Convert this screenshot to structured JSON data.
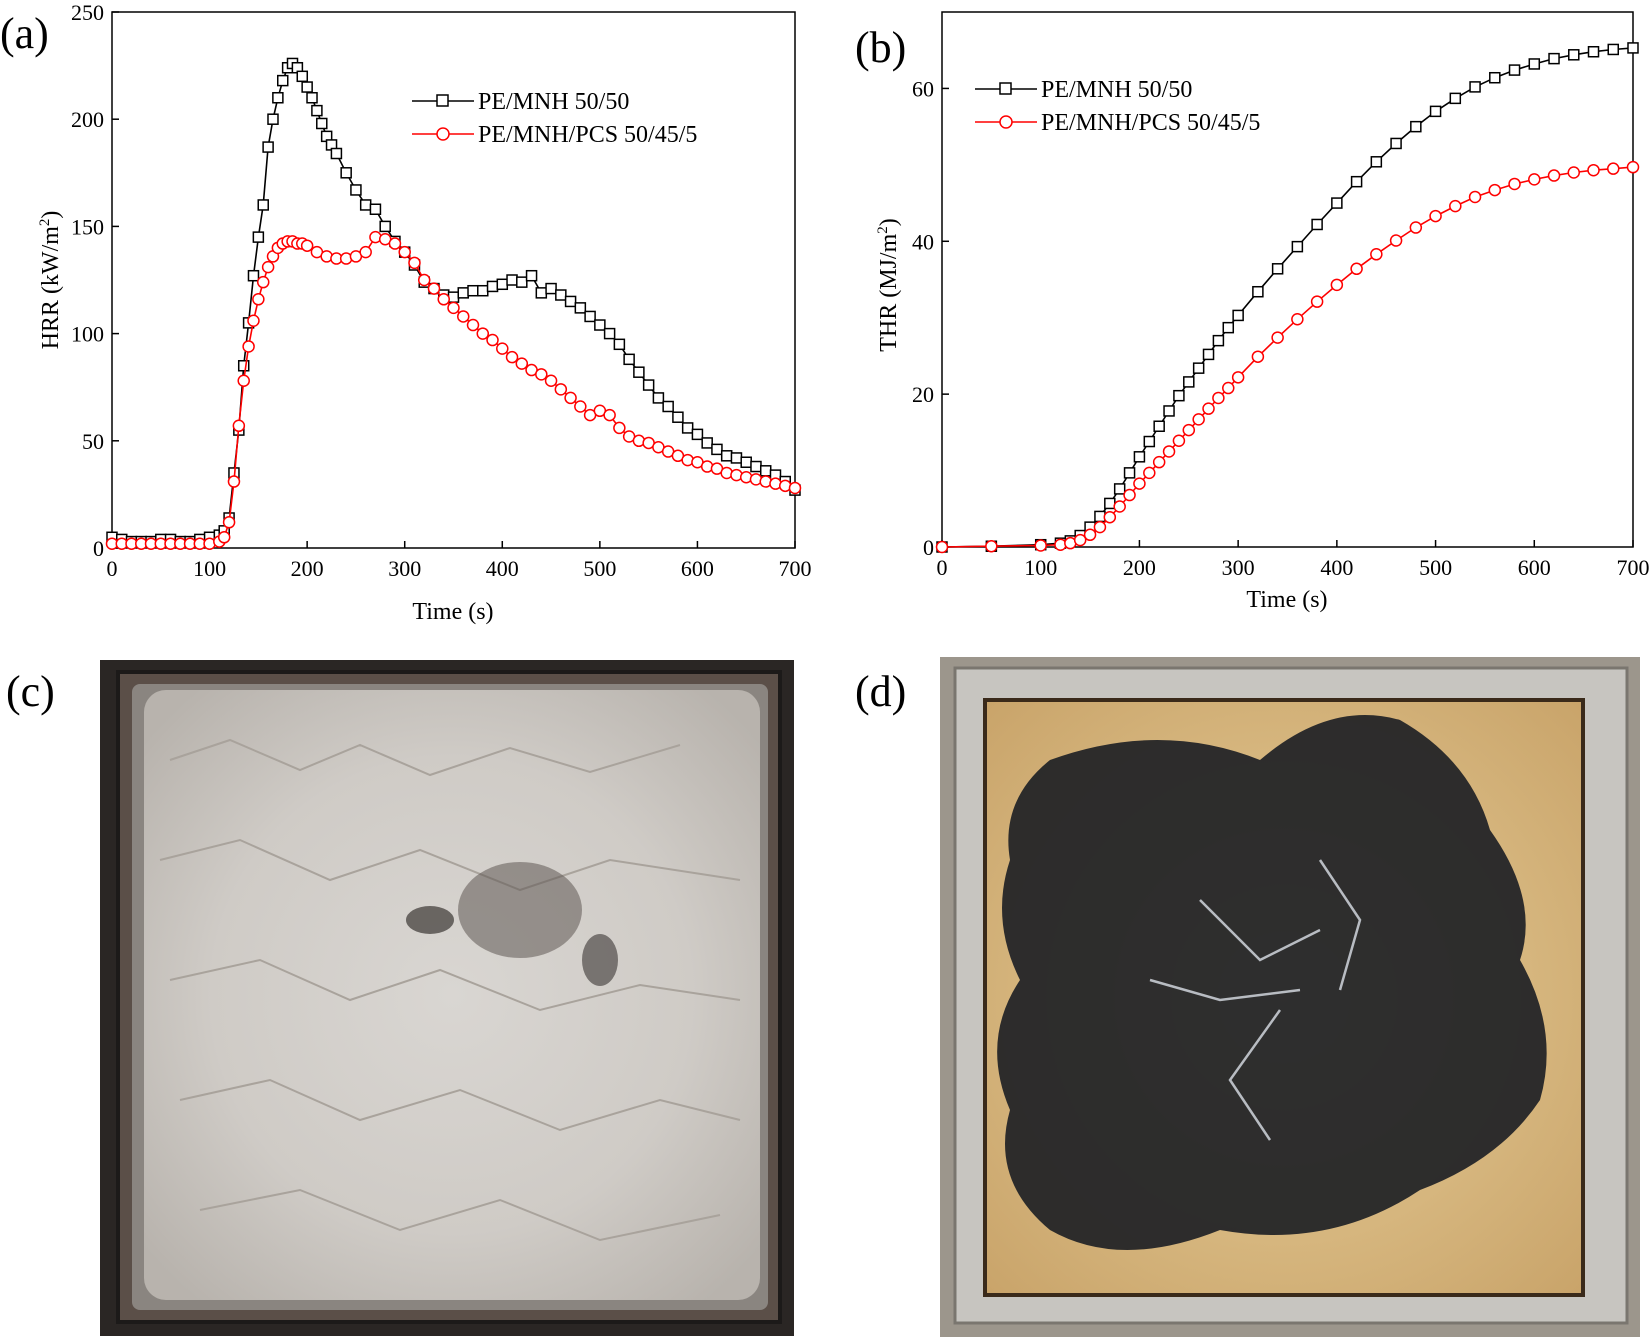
{
  "panels": {
    "a_label": "(a)",
    "b_label": "(b)",
    "c_label": "(c)",
    "d_label": "(d)"
  },
  "chart_data": [
    {
      "panel": "(a)",
      "type": "line",
      "title": "",
      "xlabel": "Time (s)",
      "ylabel": "HRR (kW/m²)",
      "ylabel_main": "HRR (kW/m",
      "ylabel_sup": "2",
      "ylabel_end": ")",
      "xlim": [
        0,
        700
      ],
      "ylim": [
        0,
        250
      ],
      "xticks": [
        0,
        100,
        200,
        300,
        400,
        500,
        600,
        700
      ],
      "yticks": [
        0,
        50,
        100,
        150,
        200,
        250
      ],
      "grid": false,
      "legend_position": "upper-right",
      "series": [
        {
          "name": "PE/MNH 50/50",
          "color": "#000000",
          "marker": "square",
          "x": [
            0,
            10,
            20,
            30,
            40,
            50,
            60,
            70,
            80,
            90,
            100,
            110,
            115,
            120,
            125,
            130,
            135,
            140,
            145,
            150,
            155,
            160,
            165,
            170,
            175,
            180,
            185,
            190,
            195,
            200,
            205,
            210,
            215,
            220,
            225,
            230,
            240,
            250,
            260,
            270,
            280,
            290,
            300,
            310,
            320,
            330,
            340,
            350,
            360,
            370,
            380,
            390,
            400,
            410,
            420,
            430,
            440,
            450,
            460,
            470,
            480,
            490,
            500,
            510,
            520,
            530,
            540,
            550,
            560,
            570,
            580,
            590,
            600,
            610,
            620,
            630,
            640,
            650,
            660,
            670,
            680,
            690,
            700
          ],
          "y": [
            5,
            4,
            3,
            3,
            3,
            4,
            4,
            3,
            3,
            4,
            5,
            6,
            8,
            14,
            35,
            55,
            85,
            105,
            127,
            145,
            160,
            187,
            200,
            210,
            218,
            224,
            226,
            224,
            220,
            215,
            210,
            204,
            198,
            192,
            188,
            184,
            175,
            167,
            160,
            158,
            150,
            143,
            138,
            132,
            124,
            121,
            118,
            117,
            119,
            120,
            120,
            122,
            123,
            125,
            124,
            127,
            119,
            121,
            118,
            115,
            112,
            108,
            104,
            100,
            95,
            88,
            82,
            76,
            70,
            66,
            61,
            56,
            53,
            49,
            46,
            43,
            42,
            40,
            38,
            36,
            34,
            31,
            27
          ]
        },
        {
          "name": "PE/MNH/PCS 50/45/5",
          "color": "#ff0000",
          "marker": "circle",
          "x": [
            0,
            10,
            20,
            30,
            40,
            50,
            60,
            70,
            80,
            90,
            100,
            110,
            115,
            120,
            125,
            130,
            135,
            140,
            145,
            150,
            155,
            160,
            165,
            170,
            175,
            180,
            185,
            190,
            195,
            200,
            210,
            220,
            230,
            240,
            250,
            260,
            270,
            280,
            290,
            300,
            310,
            320,
            330,
            340,
            350,
            360,
            370,
            380,
            390,
            400,
            410,
            420,
            430,
            440,
            450,
            460,
            470,
            480,
            490,
            500,
            510,
            520,
            530,
            540,
            550,
            560,
            570,
            580,
            590,
            600,
            610,
            620,
            630,
            640,
            650,
            660,
            670,
            680,
            690,
            700
          ],
          "y": [
            2,
            2,
            2,
            2,
            2,
            2,
            2,
            2,
            2,
            2,
            2,
            3,
            5,
            12,
            31,
            57,
            78,
            94,
            106,
            116,
            124,
            131,
            136,
            140,
            142,
            143,
            143,
            142,
            142,
            141,
            138,
            136,
            135,
            135,
            136,
            138,
            145,
            144,
            142,
            138,
            133,
            125,
            121,
            116,
            112,
            108,
            104,
            100,
            97,
            93,
            89,
            86,
            83,
            81,
            78,
            74,
            70,
            66,
            62,
            64,
            62,
            56,
            52,
            50,
            49,
            47,
            45,
            43,
            41,
            40,
            38,
            37,
            35,
            34,
            33,
            32,
            31,
            30,
            29,
            28
          ]
        }
      ]
    },
    {
      "panel": "(b)",
      "type": "line",
      "title": "",
      "xlabel": "Time (s)",
      "ylabel": "THR (MJ/m²)",
      "ylabel_main": "THR (MJ/m",
      "ylabel_sup": "2",
      "ylabel_end": ")",
      "xlim": [
        0,
        700
      ],
      "ylim": [
        0,
        70
      ],
      "xticks": [
        0,
        100,
        200,
        300,
        400,
        500,
        600,
        700
      ],
      "yticks": [
        0,
        20,
        40,
        60
      ],
      "grid": false,
      "legend_position": "upper-left",
      "series": [
        {
          "name": "PE/MNH 50/50",
          "color": "#000000",
          "marker": "square",
          "x": [
            0,
            50,
            100,
            120,
            130,
            140,
            150,
            160,
            170,
            180,
            190,
            200,
            210,
            220,
            230,
            240,
            250,
            260,
            270,
            280,
            290,
            300,
            320,
            340,
            360,
            380,
            400,
            420,
            440,
            460,
            480,
            500,
            520,
            540,
            560,
            580,
            600,
            620,
            640,
            660,
            680,
            700
          ],
          "y": [
            0,
            0.1,
            0.3,
            0.5,
            0.8,
            1.5,
            2.6,
            4.0,
            5.7,
            7.6,
            9.7,
            11.8,
            13.8,
            15.8,
            17.8,
            19.8,
            21.6,
            23.4,
            25.2,
            27.0,
            28.7,
            30.3,
            33.4,
            36.4,
            39.3,
            42.2,
            45.0,
            47.8,
            50.4,
            52.8,
            55.0,
            57.0,
            58.7,
            60.2,
            61.4,
            62.4,
            63.2,
            63.9,
            64.4,
            64.8,
            65.1,
            65.3
          ]
        },
        {
          "name": "PE/MNH/PCS 50/45/5",
          "color": "#ff0000",
          "marker": "circle",
          "x": [
            0,
            50,
            100,
            120,
            130,
            140,
            150,
            160,
            170,
            180,
            190,
            200,
            210,
            220,
            230,
            240,
            250,
            260,
            270,
            280,
            290,
            300,
            320,
            340,
            360,
            380,
            400,
            420,
            440,
            460,
            480,
            500,
            520,
            540,
            560,
            580,
            600,
            620,
            640,
            660,
            680,
            700
          ],
          "y": [
            0,
            0.1,
            0.2,
            0.3,
            0.5,
            0.9,
            1.6,
            2.6,
            3.9,
            5.3,
            6.8,
            8.3,
            9.7,
            11.1,
            12.5,
            13.9,
            15.3,
            16.7,
            18.1,
            19.5,
            20.8,
            22.2,
            24.9,
            27.4,
            29.8,
            32.1,
            34.3,
            36.4,
            38.3,
            40.1,
            41.8,
            43.3,
            44.6,
            45.8,
            46.7,
            47.5,
            48.1,
            48.6,
            49.0,
            49.3,
            49.5,
            49.7
          ]
        }
      ]
    }
  ]
}
